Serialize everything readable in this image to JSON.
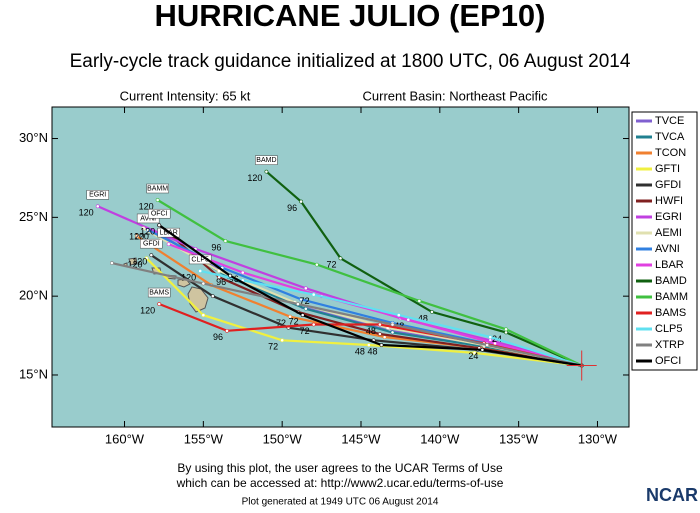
{
  "chart_data": {
    "type": "track",
    "title": "HURRICANE JULIO (EP10)",
    "subtitle": "Early-cycle track guidance initialized at 1800 UTC, 06 August 2014",
    "intensity": "Current Intensity: 65 kt",
    "basin": "Current Basin: Northeast Pacific",
    "terms": [
      "By using this plot, the user agrees to the UCAR Terms of Use",
      "which can be accessed at: http://www2.ucar.edu/terms-of-use"
    ],
    "generated": "Plot generated at 1949 UTC  06 August 2014",
    "logo": "NCAR",
    "ocean_color": "#99cccc",
    "land_color": "#cfc4a0",
    "xlim": [
      -164.6,
      -128.0
    ],
    "ylim": [
      11.7,
      32.0
    ],
    "xticks": [
      {
        "value": -160,
        "label": "160°W"
      },
      {
        "value": -155,
        "label": "155°W"
      },
      {
        "value": -150,
        "label": "150°W"
      },
      {
        "value": -145,
        "label": "145°W"
      },
      {
        "value": -140,
        "label": "140°W"
      },
      {
        "value": -135,
        "label": "135°W"
      },
      {
        "value": -130,
        "label": "130°W"
      }
    ],
    "yticks": [
      {
        "value": 15,
        "label": "15°N"
      },
      {
        "value": 20,
        "label": "20°N"
      },
      {
        "value": 25,
        "label": "25°N"
      },
      {
        "value": 30,
        "label": "30°N"
      }
    ],
    "series": [
      {
        "name": "TVCE",
        "color": "#8060d0",
        "lon": [
          -131.0,
          -137.3,
          -143.2,
          -148.7,
          -153.6,
          -158.2
        ],
        "lat": [
          15.6,
          16.9,
          17.8,
          19.3,
          21.4,
          24.2
        ],
        "labels": [
          null,
          null,
          null,
          null,
          null,
          "120"
        ],
        "tag": false
      },
      {
        "name": "TVCA",
        "color": "#208090",
        "lon": [
          -131.0,
          -137.2,
          -143.0,
          -148.5,
          -153.4,
          -158.0
        ],
        "lat": [
          15.6,
          16.8,
          17.7,
          19.2,
          21.2,
          24.0
        ],
        "labels": [
          null,
          null,
          null,
          null,
          null,
          null
        ],
        "tag": false
      },
      {
        "name": "TCON",
        "color": "#f08030",
        "lon": [
          -131.0,
          -137.4,
          -143.5,
          -149.5,
          -154.5,
          -159.2
        ],
        "lat": [
          15.6,
          16.7,
          17.4,
          18.7,
          20.7,
          23.8
        ],
        "labels": [
          null,
          null,
          null,
          "72",
          null,
          null
        ],
        "tag": false
      },
      {
        "name": "GFTI",
        "color": "#f0f040",
        "lon": [
          -131.0,
          -137.8,
          -144.5,
          -150.0,
          -155.0,
          -158.6
        ],
        "lat": [
          15.6,
          16.4,
          16.9,
          17.2,
          18.8,
          22.4
        ],
        "labels": [
          null,
          null,
          "48",
          "72",
          null,
          "120"
        ],
        "tag": false
      },
      {
        "name": "GFDI",
        "color": "#303030",
        "lon": [
          -131.0,
          -137.6,
          -144.2,
          -149.6,
          -154.4,
          -158.3
        ],
        "lat": [
          15.6,
          16.6,
          17.2,
          18.0,
          20.0,
          22.6
        ],
        "labels": [
          null,
          null,
          null,
          null,
          null,
          "120"
        ],
        "tag": true
      },
      {
        "name": "HWFI",
        "color": "#802020",
        "lon": [
          -131.0,
          -137.5,
          -143.8,
          -149.0,
          -154.0,
          -157.8
        ],
        "lat": [
          15.6,
          16.7,
          17.6,
          19.0,
          21.2,
          24.5
        ],
        "labels": [
          null,
          null,
          null,
          null,
          null,
          null
        ],
        "tag": false
      },
      {
        "name": "EGRI",
        "color": "#c040e0",
        "lon": [
          -131.0,
          -136.8,
          -142.5,
          -148.5,
          -155.5,
          -161.7
        ],
        "lat": [
          15.6,
          17.2,
          18.6,
          20.5,
          23.0,
          25.7
        ],
        "labels": [
          null,
          null,
          null,
          null,
          null,
          "120"
        ],
        "tag": true
      },
      {
        "name": "AEMI",
        "color": "#e0e0b0",
        "lon": [
          -131.0,
          -137.2,
          -143.3,
          -149.2,
          -154.0,
          -158.8
        ],
        "lat": [
          15.6,
          16.9,
          18.0,
          19.6,
          21.6,
          24.3
        ],
        "labels": [
          null,
          null,
          null,
          null,
          null,
          null
        ],
        "tag": false
      },
      {
        "name": "AVNI",
        "color": "#3080e0",
        "lon": [
          -131.0,
          -137.0,
          -143.0,
          -148.8,
          -153.8,
          -158.5
        ],
        "lat": [
          15.6,
          17.0,
          18.3,
          19.8,
          21.8,
          24.2
        ],
        "labels": [
          null,
          null,
          null,
          null,
          null,
          "120"
        ],
        "tag": true
      },
      {
        "name": "LBAR",
        "color": "#e040e0",
        "lon": [
          -131.0,
          -136.5,
          -142.0,
          -147.5,
          -152.5,
          -157.2
        ],
        "lat": [
          15.6,
          17.0,
          18.5,
          20.0,
          21.5,
          23.3
        ],
        "labels": [
          null,
          null,
          "48",
          null,
          "96",
          null
        ],
        "tag": true
      },
      {
        "name": "BAMD",
        "color": "#106010",
        "lon": [
          -131.0,
          -135.8,
          -140.5,
          -146.3,
          -148.8,
          -151.0
        ],
        "lat": [
          15.6,
          17.7,
          19.0,
          22.4,
          26.0,
          27.9
        ],
        "labels": [
          null,
          "24",
          "48",
          "72",
          "96",
          "120"
        ],
        "tag": true
      },
      {
        "name": "BAMM",
        "color": "#40c040",
        "lon": [
          -131.0,
          -135.8,
          -141.3,
          -147.8,
          -153.6,
          -157.9
        ],
        "lat": [
          15.6,
          17.9,
          19.7,
          22.0,
          23.5,
          26.1
        ],
        "labels": [
          null,
          null,
          null,
          null,
          "96",
          "120"
        ],
        "tag": true
      },
      {
        "name": "BAMS",
        "color": "#e02020",
        "lon": [
          -131.0,
          -137.2,
          -143.8,
          -148.0,
          -153.5,
          -157.8
        ],
        "lat": [
          15.6,
          17.0,
          18.2,
          18.2,
          17.8,
          19.5
        ],
        "labels": [
          null,
          null,
          "48",
          "72",
          "96",
          "120"
        ],
        "tag": true
      },
      {
        "name": "CLP5",
        "color": "#60e0f0",
        "lon": [
          -131.0,
          -136.8,
          -142.6,
          -148.0,
          -152.5,
          -155.2
        ],
        "lat": [
          15.6,
          17.4,
          18.8,
          20.1,
          21.0,
          21.6
        ],
        "labels": [
          null,
          null,
          null,
          "72",
          null,
          "120"
        ],
        "tag": true
      },
      {
        "name": "XTRP",
        "color": "#808080",
        "lon": [
          -131.0,
          -137.0,
          -143.0,
          -149.0,
          -155.0,
          -160.8
        ],
        "lat": [
          15.6,
          16.9,
          18.2,
          19.5,
          20.8,
          22.1
        ],
        "labels": [
          null,
          null,
          null,
          null,
          null,
          null
        ],
        "tag": false
      },
      {
        "name": "OFCI",
        "color": "#000000",
        "lon": [
          -131.0,
          -137.3,
          -143.7,
          -148.7,
          -153.3,
          -157.8
        ],
        "lat": [
          15.6,
          16.6,
          16.9,
          18.8,
          21.3,
          24.5
        ],
        "labels": [
          null,
          "24",
          "48",
          "72",
          "96",
          "120"
        ],
        "tag": true
      }
    ]
  }
}
